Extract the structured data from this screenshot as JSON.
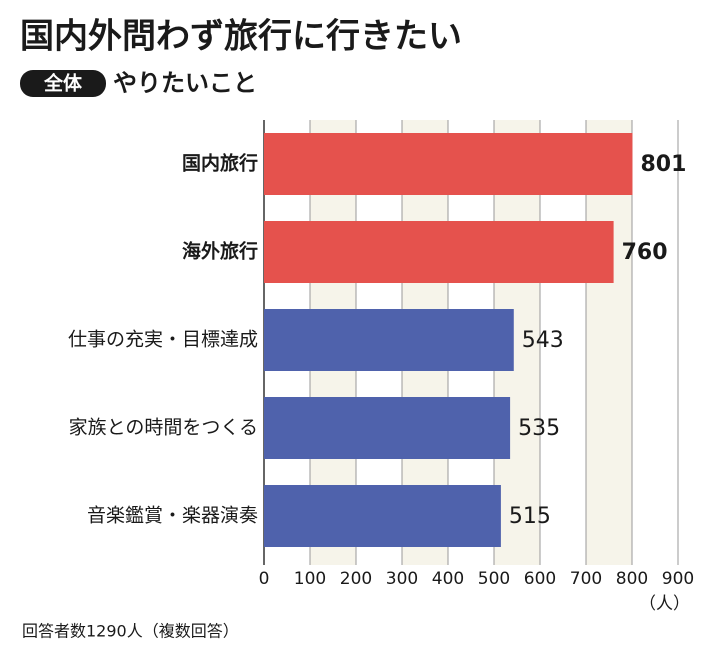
{
  "chart_data": {
    "type": "hbar",
    "title": "国内外問わず旅行に行きたい",
    "badge": "全体",
    "subtitle": "やりたいこと",
    "categories": [
      "国内旅行",
      "海外旅行",
      "仕事の充実・目標達成",
      "家族との時間をつくる",
      "音楽鑑賞・楽器演奏"
    ],
    "values": [
      801,
      760,
      543,
      535,
      515
    ],
    "colors": [
      "#e5524d",
      "#e5524d",
      "#4f62ac",
      "#4f62ac",
      "#4f62ac"
    ],
    "bold": [
      true,
      true,
      false,
      false,
      false
    ],
    "xlim": [
      0,
      900
    ],
    "xticks": [
      0,
      100,
      200,
      300,
      400,
      500,
      600,
      700,
      800,
      900
    ],
    "x_label": "（人）",
    "note": "回答者数1290人（複数回答）",
    "grid": true
  }
}
